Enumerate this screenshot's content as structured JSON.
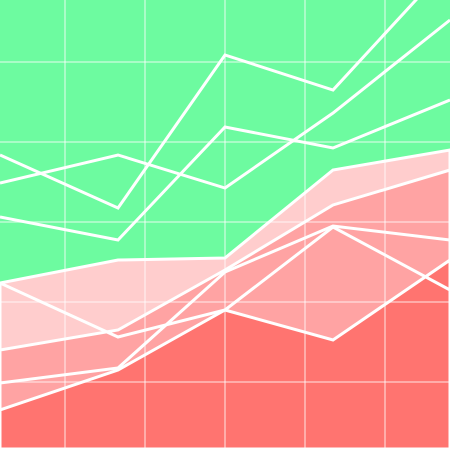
{
  "chart_data": {
    "type": "area",
    "x": [
      0,
      118,
      225,
      333,
      450
    ],
    "xlim": [
      0,
      450
    ],
    "ylim": [
      0,
      449
    ],
    "xticks": [
      65,
      145,
      225,
      305,
      385
    ],
    "yticks": [
      67,
      147,
      227,
      307,
      387
    ],
    "grid": true,
    "background": "#6dfba0",
    "line_color": "#ffffff",
    "series": [
      {
        "kind": "area",
        "color": "#ffcdcd",
        "values": [
          166,
          189,
          191,
          279,
          299
        ]
      },
      {
        "kind": "area",
        "color": "#ffa3a3",
        "values": [
          99,
          119,
          179,
          244,
          279
        ]
      },
      {
        "kind": "area",
        "color": "#ff7470",
        "values": [
          39,
          79,
          139,
          109,
          189
        ]
      },
      {
        "kind": "line",
        "values": [
          294,
          241,
          394,
          359,
          486
        ]
      },
      {
        "kind": "line",
        "values": [
          266,
          294,
          261,
          336,
          429
        ]
      },
      {
        "kind": "line",
        "values": [
          232,
          209,
          322,
          301,
          349
        ]
      },
      {
        "kind": "line",
        "values": [
          166,
          112,
          139,
          222,
          159
        ]
      },
      {
        "kind": "line",
        "values": [
          66,
          81,
          177,
          223,
          209
        ]
      }
    ]
  }
}
